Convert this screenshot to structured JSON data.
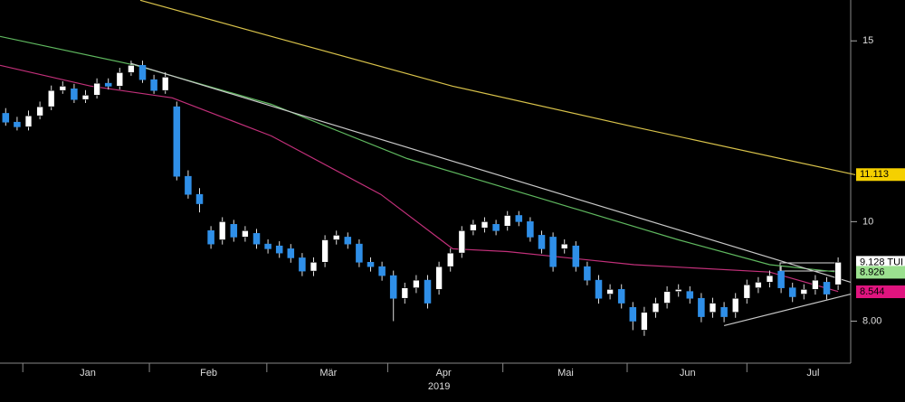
{
  "chart_data": {
    "type": "candlestick",
    "log_scale": true,
    "ylim": [
      7.31,
      16.44
    ],
    "yticks": [
      {
        "value": 8,
        "label": "8.00"
      },
      10,
      15
    ],
    "xlim": [
      -0.5,
      74.5
    ],
    "xticks": [
      {
        "value": 7.2,
        "label": "Jan"
      },
      {
        "value": 17.8,
        "label": "Feb"
      },
      {
        "value": 28.3,
        "label": "Mär"
      },
      {
        "value": 38.4,
        "label": "Apr"
      },
      {
        "value": 49.1,
        "label": "Mai"
      },
      {
        "value": 59.8,
        "label": "Jun"
      },
      {
        "value": 70.8,
        "label": "Jul"
      }
    ],
    "month_boundaries": [
      1.5,
      12.6,
      22.9,
      33.5,
      43.6,
      54.5,
      65
    ],
    "year_label": {
      "value": 38,
      "label": "2019"
    },
    "up_color": "#ffffff",
    "down_color": "#2f8fe8",
    "open": [
      12.75,
      12.5,
      12.37,
      12.68,
      12.94,
      13.42,
      13.47,
      13.15,
      13.28,
      13.64,
      13.55,
      13.97,
      14.2,
      13.75,
      13.42,
      12.94,
      11.07,
      10.63,
      9.8,
      9.6,
      9.94,
      9.66,
      9.74,
      9.51,
      9.47,
      9.41,
      9.22,
      8.95,
      9.13,
      9.6,
      9.66,
      9.51,
      9.13,
      9.04,
      8.86,
      8.42,
      8.62,
      8.77,
      8.59,
      9.04,
      9.32,
      9.8,
      9.86,
      9.94,
      9.9,
      10.14,
      10.0,
      9.7,
      9.66,
      9.41,
      9.47,
      9.04,
      8.77,
      8.5,
      8.59,
      8.25,
      7.84,
      8.16,
      8.33,
      8.55,
      8.55,
      8.42,
      8.16,
      8.25,
      8.16,
      8.42,
      8.62,
      8.73,
      8.95,
      8.62,
      8.5,
      8.59,
      8.73,
      8.68
    ],
    "high": [
      12.9,
      12.65,
      12.83,
      13.09,
      13.57,
      13.7,
      13.62,
      13.43,
      13.79,
      13.79,
      14.12,
      14.35,
      14.35,
      13.9,
      13.98,
      13.09,
      11.22,
      10.78,
      9.9,
      10.1,
      10.04,
      9.9,
      9.84,
      9.61,
      9.57,
      9.51,
      9.32,
      9.23,
      9.7,
      9.8,
      9.76,
      9.61,
      9.23,
      9.14,
      8.96,
      8.72,
      8.87,
      8.87,
      9.14,
      9.42,
      9.9,
      10.04,
      10.1,
      10.04,
      10.24,
      10.24,
      10.1,
      9.8,
      9.76,
      9.61,
      9.57,
      9.14,
      8.87,
      8.69,
      8.69,
      8.35,
      8.26,
      8.43,
      8.65,
      8.69,
      8.65,
      8.52,
      8.43,
      8.35,
      8.52,
      8.78,
      8.83,
      8.96,
      9.05,
      8.72,
      8.69,
      8.87,
      8.83,
      9.23
    ],
    "low": [
      12.4,
      12.27,
      12.27,
      12.58,
      12.84,
      13.32,
      13.05,
      13.05,
      13.18,
      13.45,
      13.45,
      13.87,
      13.65,
      13.32,
      13.32,
      10.97,
      10.53,
      10.21,
      9.41,
      9.5,
      9.56,
      9.56,
      9.41,
      9.31,
      9.22,
      9.12,
      8.85,
      8.85,
      9.03,
      9.5,
      9.41,
      9.03,
      8.94,
      8.76,
      8.0,
      8.32,
      8.52,
      8.23,
      8.49,
      8.94,
      9.22,
      9.7,
      9.76,
      9.7,
      9.8,
      9.9,
      9.56,
      9.31,
      8.94,
      9.31,
      8.94,
      8.67,
      8.32,
      8.4,
      8.23,
      7.84,
      7.74,
      8.06,
      8.23,
      8.45,
      8.32,
      7.98,
      8.06,
      7.98,
      8.06,
      8.32,
      8.52,
      8.63,
      8.52,
      8.35,
      8.4,
      8.49,
      8.4,
      8.58
    ],
    "close": [
      12.5,
      12.37,
      12.68,
      12.94,
      13.42,
      13.55,
      13.15,
      13.28,
      13.64,
      13.55,
      13.97,
      14.2,
      13.75,
      13.42,
      13.83,
      11.07,
      10.63,
      10.41,
      9.51,
      10.0,
      9.66,
      9.8,
      9.51,
      9.41,
      9.32,
      9.22,
      8.95,
      9.13,
      9.6,
      9.7,
      9.51,
      9.13,
      9.04,
      8.86,
      8.42,
      8.62,
      8.77,
      8.33,
      9.04,
      9.32,
      9.8,
      9.94,
      10.0,
      9.8,
      10.14,
      10.0,
      9.66,
      9.41,
      9.04,
      9.51,
      9.04,
      8.77,
      8.42,
      8.59,
      8.33,
      8.0,
      8.16,
      8.33,
      8.55,
      8.59,
      8.42,
      8.08,
      8.33,
      8.08,
      8.42,
      8.68,
      8.73,
      8.86,
      8.62,
      8.45,
      8.59,
      8.77,
      8.5,
      9.13
    ],
    "lines": [
      {
        "color": "#d8c24a",
        "x": [
          11.8,
          23.3,
          39.2,
          55.1,
          74.5
        ],
        "values": [
          16.43,
          15.15,
          13.55,
          12.37,
          11.11
        ]
      },
      {
        "color": "#5fb85f",
        "x": [
          -0.5,
          11.4,
          23.3,
          35.2,
          47.1,
          59,
          67,
          73
        ],
        "values": [
          15.15,
          14.2,
          13.01,
          11.52,
          10.52,
          9.6,
          9.08,
          8.93
        ]
      },
      {
        "color": "#c2307a",
        "x": [
          -0.5,
          7.5,
          14.6,
          23.3,
          32.9,
          39.2,
          44,
          55.1,
          67,
          73
        ],
        "values": [
          14.2,
          13.55,
          13.2,
          12.12,
          10.63,
          9.41,
          9.35,
          9.08,
          8.93,
          8.55
        ]
      },
      {
        "color": "#c8c8c8",
        "x": [
          11,
          74.1
        ],
        "values": [
          14.26,
          8.73
        ]
      },
      {
        "color": "#c8c8c8",
        "x": [
          63,
          74.1
        ],
        "values": [
          7.92,
          8.5
        ]
      }
    ],
    "annotations": [
      {
        "text": "11.113",
        "value": 11.113,
        "color": "#f5d000"
      },
      {
        "text": "9.128 TUI",
        "value": 9.128,
        "color": "#ffffff"
      },
      {
        "text": "8.926",
        "value": 8.926,
        "color": "#9be08f"
      },
      {
        "text": "8.544",
        "value": 8.544,
        "color": "#e0147f"
      }
    ]
  }
}
